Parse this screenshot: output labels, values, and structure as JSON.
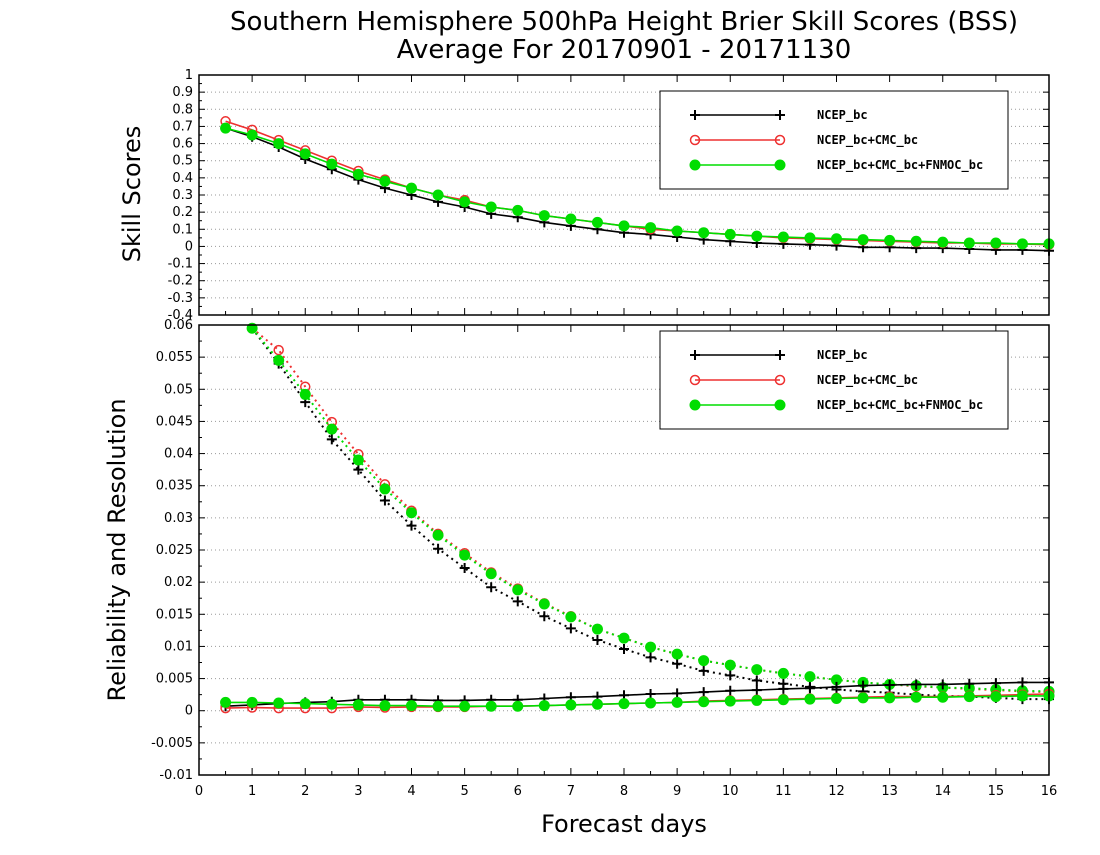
{
  "title_line1": "Southern Hemisphere 500hPa Height Brier Skill Scores (BSS)",
  "title_line2": "Average For 20170901 - 20171130",
  "xlabel": "Forecast days",
  "colors": {
    "NCEP_bc": "#000000",
    "NCEP_bc+CMC_bc": "#ee3030",
    "NCEP_bc+CMC_bc+FNMOC_bc": "#00dd00"
  },
  "chart_data": [
    {
      "type": "line",
      "panel": "top",
      "ylabel": "Skill Scores",
      "xlim": [
        0,
        16
      ],
      "ylim": [
        -0.4,
        1
      ],
      "x_ticks": [
        "0",
        "1",
        "2",
        "3",
        "4",
        "5",
        "6",
        "7",
        "8",
        "9",
        "10",
        "11",
        "12",
        "13",
        "14",
        "15",
        "16"
      ],
      "y_ticks": [
        "-0.4",
        "-0.3",
        "-0.2",
        "-0.1",
        "0",
        "0.1",
        "0.2",
        "0.3",
        "0.4",
        "0.5",
        "0.6",
        "0.7",
        "0.8",
        "0.9",
        "1"
      ],
      "legend": [
        "NCEP_bc",
        "NCEP_bc+CMC_bc",
        "NCEP_bc+CMC_bc+FNMOC_bc"
      ],
      "legend_position": "top-right",
      "x": [
        0.5,
        1,
        1.5,
        2,
        2.5,
        3,
        3.5,
        4,
        4.5,
        5,
        5.5,
        6,
        6.5,
        7,
        7.5,
        8,
        8.5,
        9,
        9.5,
        10,
        10.5,
        11,
        11.5,
        12,
        12.5,
        13,
        13.5,
        14,
        14.5,
        15,
        15.5,
        16
      ],
      "series": [
        {
          "name": "NCEP_bc",
          "marker": "plus",
          "style": "solid",
          "values": [
            0.69,
            0.64,
            0.58,
            0.51,
            0.45,
            0.39,
            0.34,
            0.3,
            0.26,
            0.23,
            0.19,
            0.17,
            0.14,
            0.12,
            0.1,
            0.08,
            0.07,
            0.055,
            0.04,
            0.03,
            0.02,
            0.015,
            0.01,
            0.005,
            -0.005,
            -0.005,
            -0.01,
            -0.01,
            -0.015,
            -0.02,
            -0.02,
            -0.025
          ]
        },
        {
          "name": "NCEP_bc+CMC_bc",
          "marker": "circle-open",
          "style": "solid",
          "values": [
            0.73,
            0.68,
            0.62,
            0.56,
            0.5,
            0.44,
            0.39,
            0.34,
            0.3,
            0.27,
            0.23,
            0.21,
            0.18,
            0.16,
            0.14,
            0.12,
            0.1,
            0.09,
            0.08,
            0.07,
            0.06,
            0.05,
            0.045,
            0.04,
            0.035,
            0.03,
            0.025,
            0.02,
            0.02,
            0.015,
            0.015,
            0.01
          ]
        },
        {
          "name": "NCEP_bc+CMC_bc+FNMOC_bc",
          "marker": "circle-filled",
          "style": "solid",
          "values": [
            0.69,
            0.65,
            0.6,
            0.54,
            0.48,
            0.42,
            0.38,
            0.34,
            0.3,
            0.26,
            0.23,
            0.21,
            0.18,
            0.16,
            0.14,
            0.12,
            0.11,
            0.09,
            0.08,
            0.07,
            0.06,
            0.055,
            0.05,
            0.045,
            0.04,
            0.035,
            0.03,
            0.025,
            0.02,
            0.02,
            0.015,
            0.015
          ]
        }
      ]
    },
    {
      "type": "line",
      "panel": "bottom",
      "ylabel": "Reliability and Resolution",
      "xlim": [
        0,
        16
      ],
      "ylim": [
        -0.01,
        0.06
      ],
      "x_ticks": [
        "0",
        "1",
        "2",
        "3",
        "4",
        "5",
        "6",
        "7",
        "8",
        "9",
        "10",
        "11",
        "12",
        "13",
        "14",
        "15",
        "16"
      ],
      "y_ticks": [
        "-0.01",
        "-0.005",
        "0",
        "0.005",
        "0.01",
        "0.015",
        "0.02",
        "0.025",
        "0.03",
        "0.035",
        "0.04",
        "0.045",
        "0.05",
        "0.055",
        "0.06"
      ],
      "legend": [
        "NCEP_bc",
        "NCEP_bc+CMC_bc",
        "NCEP_bc+CMC_bc+FNMOC_bc"
      ],
      "legend_position": "top-right",
      "x": [
        0.5,
        1,
        1.5,
        2,
        2.5,
        3,
        3.5,
        4,
        4.5,
        5,
        5.5,
        6,
        6.5,
        7,
        7.5,
        8,
        8.5,
        9,
        9.5,
        10,
        10.5,
        11,
        11.5,
        12,
        12.5,
        13,
        13.5,
        14,
        14.5,
        15,
        15.5,
        16
      ],
      "series": [
        {
          "name": "NCEP_bc",
          "metric": "resolution",
          "marker": "plus",
          "style": "dotted",
          "values": [
            null,
            0.0595,
            0.054,
            0.048,
            0.0422,
            0.0375,
            0.0327,
            0.0288,
            0.0252,
            0.0222,
            0.0192,
            0.017,
            0.0147,
            0.0128,
            0.011,
            0.0096,
            0.0083,
            0.0073,
            0.0062,
            0.0055,
            0.0047,
            0.0042,
            0.0037,
            0.0033,
            0.003,
            0.0028,
            0.0025,
            0.0023,
            0.0022,
            0.002,
            0.0018,
            0.0018
          ]
        },
        {
          "name": "NCEP_bc+CMC_bc",
          "metric": "resolution",
          "marker": "circle-open",
          "style": "dotted",
          "values": [
            null,
            0.0595,
            0.0561,
            0.0504,
            0.0449,
            0.0399,
            0.0352,
            0.0311,
            0.0275,
            0.0245,
            0.0215,
            0.019,
            0.0167,
            0.0147,
            0.0127,
            0.0113,
            0.0099,
            0.0088,
            0.0078,
            0.0071,
            0.0064,
            0.0058,
            0.0053,
            0.0048,
            0.0044,
            0.0041,
            0.0038,
            0.0036,
            0.0034,
            0.0032,
            0.003,
            0.0029
          ]
        },
        {
          "name": "NCEP_bc+CMC_bc+FNMOC_bc",
          "metric": "resolution",
          "marker": "circle-filled",
          "style": "dotted",
          "values": [
            null,
            0.0595,
            0.0545,
            0.0492,
            0.0438,
            0.039,
            0.0345,
            0.0308,
            0.0273,
            0.0242,
            0.0213,
            0.0188,
            0.0166,
            0.0146,
            0.0127,
            0.0113,
            0.0099,
            0.0088,
            0.0078,
            0.0071,
            0.0064,
            0.0058,
            0.0053,
            0.0048,
            0.0044,
            0.0041,
            0.0039,
            0.0036,
            0.0035,
            0.0033,
            0.0031,
            0.003
          ]
        },
        {
          "name": "NCEP_bc",
          "metric": "reliability",
          "marker": "plus",
          "style": "solid",
          "values": [
            0.0007,
            0.0009,
            0.0011,
            0.0013,
            0.0014,
            0.0017,
            0.0017,
            0.0017,
            0.0016,
            0.0016,
            0.0017,
            0.0017,
            0.0019,
            0.0021,
            0.0022,
            0.0024,
            0.0026,
            0.0027,
            0.0029,
            0.0031,
            0.0032,
            0.0034,
            0.0035,
            0.0037,
            0.0039,
            0.004,
            0.0041,
            0.0041,
            0.0042,
            0.0043,
            0.0044,
            0.0044
          ]
        },
        {
          "name": "NCEP_bc+CMC_bc",
          "metric": "reliability",
          "marker": "circle-open",
          "style": "solid",
          "values": [
            0.0004,
            0.0005,
            0.0004,
            0.0004,
            0.0004,
            0.0006,
            0.0005,
            0.0006,
            0.0006,
            0.0006,
            0.0007,
            0.0007,
            0.0008,
            0.0009,
            0.001,
            0.0011,
            0.0012,
            0.0013,
            0.0015,
            0.0016,
            0.0017,
            0.0018,
            0.0019,
            0.002,
            0.0021,
            0.0022,
            0.0022,
            0.0022,
            0.0023,
            0.0024,
            0.0025,
            0.0026
          ]
        },
        {
          "name": "NCEP_bc+CMC_bc+FNMOC_bc",
          "metric": "reliability",
          "marker": "circle-filled",
          "style": "solid",
          "values": [
            0.0013,
            0.0013,
            0.0012,
            0.0011,
            0.001,
            0.0009,
            0.0008,
            0.0008,
            0.0007,
            0.0007,
            0.0007,
            0.0007,
            0.0008,
            0.0009,
            0.001,
            0.0011,
            0.0012,
            0.0013,
            0.0014,
            0.0015,
            0.0016,
            0.0017,
            0.0018,
            0.0019,
            0.002,
            0.002,
            0.0021,
            0.0021,
            0.0022,
            0.0022,
            0.0023,
            0.0023
          ]
        }
      ]
    }
  ]
}
